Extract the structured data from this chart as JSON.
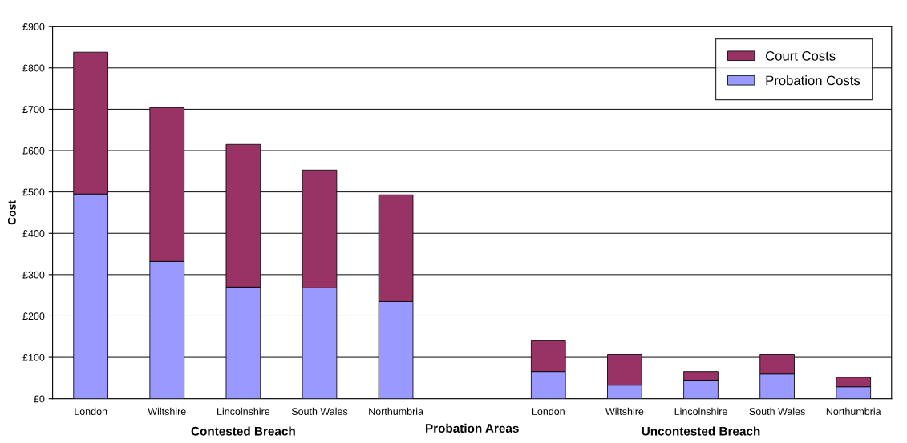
{
  "chart_data": {
    "type": "bar",
    "stacked": true,
    "xlabel": "Probation Areas",
    "ylabel": "Cost",
    "categories": [
      "London",
      "Wiltshire",
      "Lincolnshire",
      "South Wales",
      "Northumbria",
      null,
      "London",
      "Wiltshire",
      "Lincolnshire",
      "South Wales",
      "Northumbria"
    ],
    "series": [
      {
        "name": "Probation Costs",
        "color": "#9999ff",
        "values": [
          495,
          332,
          270,
          268,
          235,
          null,
          66,
          33,
          45,
          60,
          29
        ]
      },
      {
        "name": "Court Costs",
        "color": "#993366",
        "values": [
          343,
          372,
          345,
          285,
          258,
          null,
          74,
          74,
          21,
          47,
          23
        ]
      }
    ],
    "ylim": [
      0,
      900
    ],
    "yticks": [
      {
        "value": 0,
        "label": "£0"
      },
      {
        "value": 100,
        "label": "£100"
      },
      {
        "value": 200,
        "label": "£200"
      },
      {
        "value": 300,
        "label": "£300"
      },
      {
        "value": 400,
        "label": "£400"
      },
      {
        "value": 500,
        "label": "£500"
      },
      {
        "value": 600,
        "label": "£600"
      },
      {
        "value": 700,
        "label": "£700"
      },
      {
        "value": 800,
        "label": "£800"
      },
      {
        "value": 900,
        "label": "£900"
      }
    ],
    "grid": "y",
    "legend": "top right",
    "annotations": [
      "Contested Breach",
      "Uncontested Breach"
    ]
  }
}
